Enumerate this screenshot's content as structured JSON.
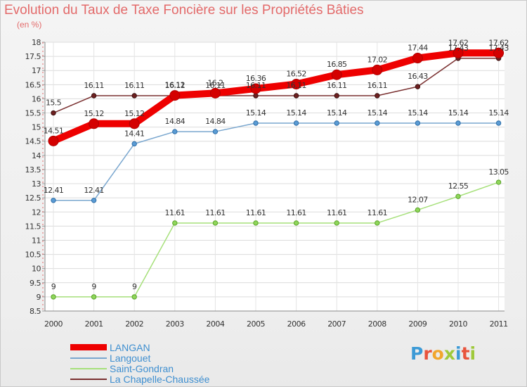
{
  "chart_data": {
    "type": "line",
    "title": "Evolution du Taux de Taxe Foncière sur les Propriétés Bâties",
    "subtitle": "(en %)",
    "x": [
      "2000",
      "2001",
      "2002",
      "2003",
      "2004",
      "2005",
      "2006",
      "2007",
      "2008",
      "2009",
      "2010",
      "2011"
    ],
    "ylim": [
      8.5,
      18
    ],
    "yticks": [
      "8.5",
      "9",
      "9.5",
      "10",
      "10.5",
      "11",
      "11.5",
      "12",
      "12.5",
      "13",
      "13.5",
      "14",
      "14.5",
      "15",
      "15.5",
      "16",
      "16.5",
      "17",
      "17.5",
      "18"
    ],
    "series": [
      {
        "name": "LANGAN",
        "color": "#ee0000",
        "values": [
          14.51,
          15.12,
          15.12,
          16.12,
          16.2,
          16.36,
          16.52,
          16.85,
          17.02,
          17.44,
          17.62,
          17.62
        ],
        "labels": [
          "14.51",
          "15.12",
          "15.12",
          "16.12",
          "16.2",
          "16.36",
          "16.52",
          "16.85",
          "17.02",
          "17.44",
          "17.62",
          "17.62"
        ]
      },
      {
        "name": "Langouet",
        "color": "#7aa7cf",
        "values": [
          12.41,
          12.41,
          14.41,
          14.84,
          14.84,
          15.14,
          15.14,
          15.14,
          15.14,
          15.14,
          15.14,
          15.14
        ],
        "labels": [
          "12.41",
          "12.41",
          "14.41",
          "14.84",
          "14.84",
          "15.14",
          "15.14",
          "15.14",
          "15.14",
          "15.14",
          "15.14",
          "15.14"
        ]
      },
      {
        "name": "Saint-Gondran",
        "color": "#a6e07a",
        "values": [
          9,
          9,
          9,
          11.61,
          11.61,
          11.61,
          11.61,
          11.61,
          11.61,
          12.07,
          12.55,
          13.05
        ],
        "labels": [
          "9",
          "9",
          "9",
          "11.61",
          "11.61",
          "11.61",
          "11.61",
          "11.61",
          "11.61",
          "12.07",
          "12.55",
          "13.05"
        ]
      },
      {
        "name": "La Chapelle-Chaussée",
        "color": "#7a3030",
        "values": [
          15.5,
          16.11,
          16.11,
          16.11,
          16.11,
          16.11,
          16.11,
          16.11,
          16.11,
          16.43,
          17.43,
          17.43
        ],
        "labels": [
          "15.5",
          "16.11",
          "16.11",
          "16.11",
          "16.11",
          "16.11",
          "16.11",
          "16.11",
          "16.11",
          "16.43",
          "17.43",
          "17.43"
        ]
      }
    ]
  },
  "logo": {
    "letters": [
      "P",
      "r",
      "o",
      "x",
      "i",
      "t",
      "i"
    ],
    "colors": [
      "#3c9ad6",
      "#e8533c",
      "#f1a62c",
      "#9fc93a",
      "#3c9ad6",
      "#e8533c",
      "#9fc93a"
    ]
  }
}
